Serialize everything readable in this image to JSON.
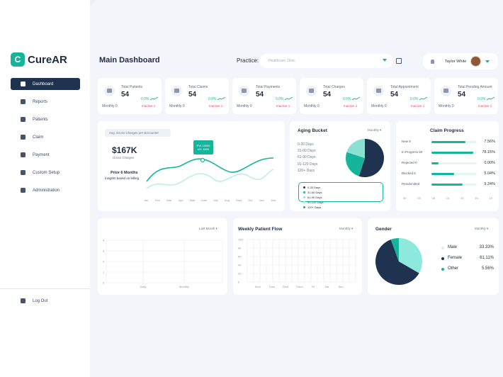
{
  "app": {
    "name": "CureAR",
    "logo_letter": "C"
  },
  "sidebar": {
    "items": [
      {
        "label": "Dashboard",
        "icon": "dashboard-icon",
        "active": true
      },
      {
        "label": "Reports",
        "icon": "report-icon"
      },
      {
        "label": "Patients",
        "icon": "patients-icon"
      },
      {
        "label": "Claim",
        "icon": "claim-icon"
      },
      {
        "label": "Payment",
        "icon": "payment-icon"
      },
      {
        "label": "Custom Setup",
        "icon": "gear-icon"
      },
      {
        "label": "Administration",
        "icon": "admin-icon"
      }
    ],
    "logout": "Log Out"
  },
  "header": {
    "title": "Main Dashboard",
    "practice_label": "Practice:",
    "practice_placeholder": "Healthcare Clinic",
    "user_name": "Taylor White"
  },
  "stats": [
    {
      "label": "Total Patients",
      "value": "54",
      "pct": "0.0%",
      "period": "Monthly 0",
      "status": "Inactive 1"
    },
    {
      "label": "Total Claims",
      "value": "54",
      "pct": "0.0%",
      "period": "Monthly 0",
      "status": "Inactive 1"
    },
    {
      "label": "Total Payments",
      "value": "54",
      "pct": "0.0%",
      "period": "Monthly 0",
      "status": "Inactive 1"
    },
    {
      "label": "Total Charges",
      "value": "54",
      "pct": "0.0%",
      "period": "Monthly 0",
      "status": "Inactive 1"
    },
    {
      "label": "Total Appointment",
      "value": "54",
      "pct": "0.0%",
      "period": "Monthly 0",
      "status": "Inactive 1"
    },
    {
      "label": "Total Pending Amount",
      "value": "54",
      "pct": "0.0%",
      "period": "Monthly 0",
      "status": "Inactive 1"
    }
  ],
  "gross": {
    "pill": "Avg. Gross Charges per Encounter",
    "amount": "$167K",
    "amount_sub": "Gross Charges",
    "prior": "Prior 6 Months",
    "insights": "Insights based on billing",
    "tooltip_1": "PVI 13000",
    "tooltip_2": "UV: 4000",
    "months": [
      "Jan",
      "Feb",
      "Mar",
      "Apr",
      "May",
      "June",
      "July",
      "Aug",
      "Sept",
      "Oct",
      "Nov",
      "Dec"
    ]
  },
  "aging": {
    "title": "Aging Bucket",
    "period": "Monthly",
    "buckets": [
      "0-30 Days",
      "31-60 Days",
      "61-90 Days",
      "91-120 Days",
      "120+ Days"
    ],
    "legend": [
      "0-30 Days",
      "31-60 Days",
      "61-90 Days",
      "91-120 Days",
      "120+ Days"
    ],
    "colors": [
      "#1f3350",
      "#16b59b",
      "#8ce0d2",
      "#b3ece3",
      "#4a8f86"
    ]
  },
  "claim_progress": {
    "title": "Claim Progress",
    "rows": [
      {
        "label": "New 9",
        "value": "7.56%",
        "pct": 0.75
      },
      {
        "label": "In Progress 50",
        "value": "78.15%",
        "pct": 0.92
      },
      {
        "label": "Rejected 0",
        "value": "0.00%",
        "pct": 0.15
      },
      {
        "label": "Blocked 6",
        "value": "5.04%",
        "pct": 0.5
      },
      {
        "label": "Resubmitted",
        "value": "9.24%",
        "pct": 0.68
      }
    ],
    "ticks": [
      "00",
      "03",
      "06",
      "10",
      "13",
      "16",
      "19"
    ]
  },
  "chart1": {
    "period": "Last Month",
    "yticks": [
      "4",
      "3",
      "2",
      "1",
      "0"
    ],
    "xlabels": [
      "Daily",
      "Monthly"
    ]
  },
  "weekly": {
    "title": "Weekly Patient Flow",
    "period": "Monthly",
    "yticks": [
      "100",
      "80",
      "60",
      "40",
      "20",
      "0"
    ],
    "days": [
      "Mon",
      "Tues",
      "Wed",
      "Thurs",
      "Fri",
      "Sat",
      "Sun"
    ]
  },
  "gender": {
    "title": "Gender",
    "period": "Monthly",
    "items": [
      {
        "label": "Male",
        "value": "33.33%",
        "color": "#e6e8ee"
      },
      {
        "label": "Female",
        "value": "61.11%",
        "color": "#1f3350"
      },
      {
        "label": "Other",
        "value": "5.56%",
        "color": "#16b59b"
      }
    ]
  },
  "chart_data": {
    "type": "pie",
    "title": "Gender",
    "categories": [
      "Male",
      "Female",
      "Other"
    ],
    "values": [
      33.33,
      61.11,
      5.56
    ]
  }
}
